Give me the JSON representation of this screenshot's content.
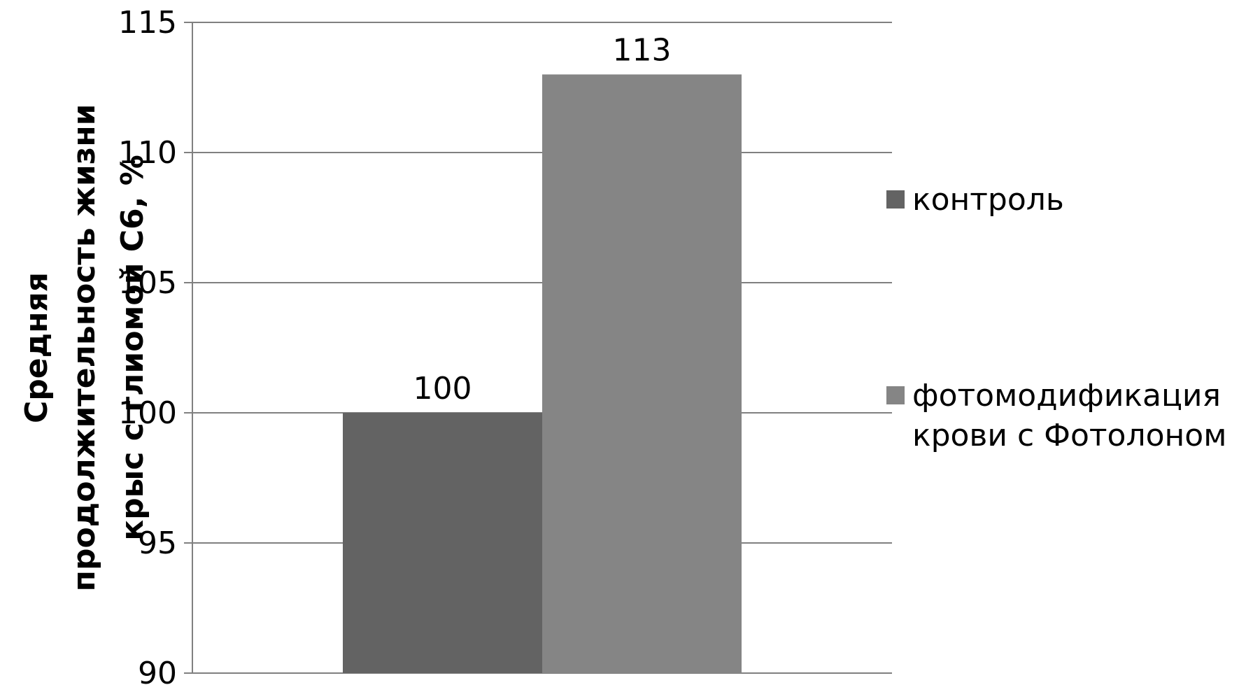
{
  "chart_data": {
    "type": "bar",
    "categories": [
      ""
    ],
    "series": [
      {
        "name": "контроль",
        "values": [
          100
        ],
        "color": "#636363"
      },
      {
        "name": "фотомодификация крови с Фотолоном",
        "name_lines": [
          "фотомодификация",
          "крови с Фотолоном"
        ],
        "values": [
          113
        ],
        "color": "#858585"
      }
    ],
    "data_labels": [
      "100",
      "113"
    ],
    "ylabel_lines": [
      "Средняя",
      "продолжительность жизни",
      "крыс с глиомой С6, %"
    ],
    "ylim": [
      90,
      115
    ],
    "yticks": [
      90,
      95,
      100,
      105,
      110,
      115
    ],
    "grid": true,
    "gridline_color": "#808080",
    "legend_position": "right"
  }
}
